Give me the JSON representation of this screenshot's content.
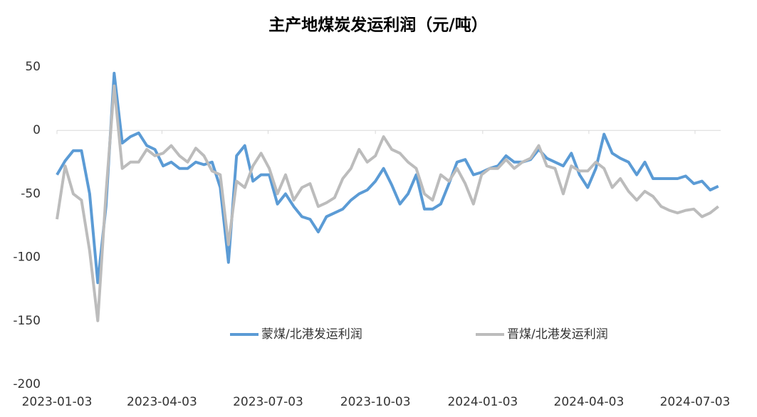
{
  "chart_data": {
    "type": "line",
    "title": "主产地煤炭发运利润（元/吨）",
    "x": [
      "2023-01-03",
      "2023-01-10",
      "2023-01-17",
      "2023-01-24",
      "2023-01-31",
      "2023-02-07",
      "2023-02-14",
      "2023-02-21",
      "2023-02-28",
      "2023-03-07",
      "2023-03-14",
      "2023-03-21",
      "2023-03-28",
      "2023-04-04",
      "2023-04-11",
      "2023-04-18",
      "2023-04-25",
      "2023-05-02",
      "2023-05-09",
      "2023-05-16",
      "2023-05-23",
      "2023-05-30",
      "2023-06-06",
      "2023-06-13",
      "2023-06-20",
      "2023-06-27",
      "2023-07-04",
      "2023-07-11",
      "2023-07-18",
      "2023-07-25",
      "2023-08-01",
      "2023-08-08",
      "2023-08-15",
      "2023-08-22",
      "2023-08-29",
      "2023-09-05",
      "2023-09-12",
      "2023-09-19",
      "2023-09-26",
      "2023-10-03",
      "2023-10-10",
      "2023-10-17",
      "2023-10-24",
      "2023-10-31",
      "2023-11-07",
      "2023-11-14",
      "2023-11-21",
      "2023-11-28",
      "2023-12-05",
      "2023-12-12",
      "2023-12-19",
      "2023-12-26",
      "2024-01-02",
      "2024-01-09",
      "2024-01-16",
      "2024-01-23",
      "2024-01-30",
      "2024-02-06",
      "2024-02-13",
      "2024-02-20",
      "2024-02-27",
      "2024-03-05",
      "2024-03-12",
      "2024-03-19",
      "2024-03-26",
      "2024-04-02",
      "2024-04-09",
      "2024-04-16",
      "2024-04-23",
      "2024-04-30",
      "2024-05-07",
      "2024-05-14",
      "2024-05-21",
      "2024-05-28",
      "2024-06-04",
      "2024-06-11",
      "2024-06-18",
      "2024-06-25",
      "2024-07-02",
      "2024-07-09",
      "2024-07-16",
      "2024-07-23"
    ],
    "series": [
      {
        "name": "蒙煤/北港发运利润",
        "color": "#5b9bd5",
        "values": [
          -35,
          -24,
          -16,
          -16,
          -50,
          -120,
          -60,
          45,
          -10,
          -5,
          -2,
          -12,
          -15,
          -28,
          -25,
          -30,
          -30,
          -25,
          -27,
          -25,
          -45,
          -104,
          -20,
          -12,
          -40,
          -35,
          -35,
          -58,
          -50,
          -60,
          -68,
          -70,
          -80,
          -68,
          -65,
          -62,
          -55,
          -50,
          -47,
          -40,
          -30,
          -43,
          -58,
          -50,
          -35,
          -62,
          -62,
          -58,
          -42,
          -25,
          -23,
          -35,
          -33,
          -30,
          -28,
          -20,
          -25,
          -25,
          -23,
          -15,
          -22,
          -25,
          -28,
          -18,
          -35,
          -45,
          -30,
          -3,
          -18,
          -22,
          -25,
          -35,
          -25,
          -38,
          -38,
          -38,
          -38,
          -36,
          -42,
          -40,
          -47,
          -44
        ]
      },
      {
        "name": "晋煤/北港发运利润",
        "color": "#bcbcbc",
        "values": [
          -70,
          -28,
          -50,
          -55,
          -95,
          -150,
          -50,
          35,
          -30,
          -25,
          -25,
          -15,
          -20,
          -18,
          -12,
          -20,
          -25,
          -14,
          -20,
          -32,
          -35,
          -90,
          -40,
          -45,
          -28,
          -18,
          -30,
          -50,
          -35,
          -55,
          -45,
          -42,
          -60,
          -57,
          -53,
          -38,
          -30,
          -15,
          -25,
          -20,
          -5,
          -15,
          -18,
          -25,
          -30,
          -50,
          -55,
          -35,
          -40,
          -30,
          -42,
          -58,
          -35,
          -30,
          -30,
          -23,
          -30,
          -25,
          -22,
          -12,
          -28,
          -30,
          -50,
          -28,
          -32,
          -32,
          -25,
          -30,
          -45,
          -38,
          -48,
          -55,
          -48,
          -52,
          -60,
          -63,
          -65,
          -63,
          -62,
          -68,
          -65,
          -60
        ]
      }
    ],
    "xlim": [
      "2023-01-03",
      "2024-07-25"
    ],
    "xticks": [
      "2023-01-03",
      "2023-04-03",
      "2023-07-03",
      "2023-10-03",
      "2024-01-03",
      "2024-04-03",
      "2024-07-03"
    ],
    "ylim": [
      -200,
      50
    ],
    "yticks": [
      -200,
      -150,
      -100,
      -50,
      0,
      50
    ],
    "grid": false,
    "legend": "bottom"
  }
}
